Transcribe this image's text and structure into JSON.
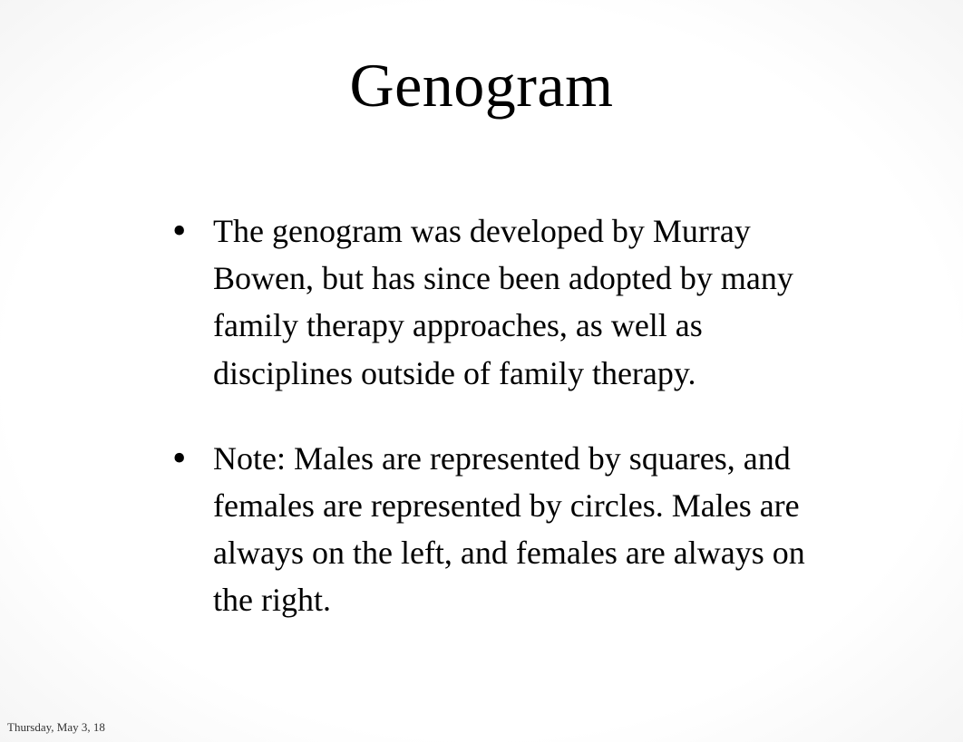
{
  "slide": {
    "title": "Genogram",
    "bullets": [
      "The genogram was developed by Murray Bowen, but has since been adopted by many family therapy approaches, as well as disciplines outside of family therapy.",
      "Note:  Males are represented by squares, and females are represented by circles.  Males are always on the left, and females are always on the right."
    ],
    "footer_date": "Thursday, May 3, 18"
  },
  "styling": {
    "title_fontsize": 68,
    "bullet_fontsize": 36,
    "footer_fontsize": 13,
    "background_color": "#ffffff",
    "text_color": "#000000",
    "font_family": "Georgia, Times New Roman, serif"
  }
}
